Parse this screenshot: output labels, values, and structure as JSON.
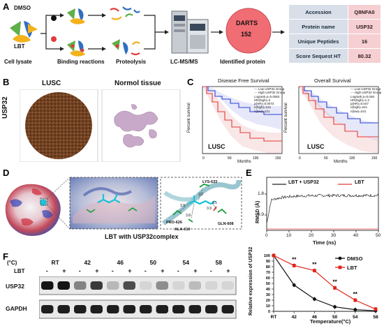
{
  "panel_letters": [
    "A",
    "B",
    "C",
    "D",
    "E",
    "F"
  ],
  "panel_a": {
    "dmso": "DMSO",
    "lbt": "LBT",
    "steps": [
      "Cell lysate",
      "Binding reactions",
      "Proteolysis",
      "LC-MS/MS",
      "Identified protein"
    ],
    "darts_title": "DARTS",
    "darts_count": "152",
    "table": [
      {
        "key": "Accession",
        "value": "Q8NFA0"
      },
      {
        "key": "Protein name",
        "value": "USP32"
      },
      {
        "key": "Unique Peptides",
        "value": "16"
      },
      {
        "key": "Score Sequest HT",
        "value": "80.32"
      }
    ]
  },
  "panel_b": {
    "row_label": "USP32",
    "col1": "LUSC",
    "col2": "Normol tissue"
  },
  "panel_c": {
    "left": {
      "title": "Disease Free Survival",
      "tag": "LUSC",
      "ylabel": "Percent survival",
      "xlabel": "Months",
      "legend": [
        "Low USP32 Group",
        "High USP32 Group",
        "Logrank p=0.0062",
        "HR(high)=2",
        "p(HR)=0.0073",
        "n(high)=121",
        "n(low)=121"
      ]
    },
    "right": {
      "title": "Overall Survival",
      "tag": "LUSC",
      "ylabel": "Percent survival",
      "xlabel": "Months",
      "legend": [
        "Low USP32 Group",
        "High USP32 Group",
        "Logrank p=0.048",
        "HR(high)=1.3",
        "p(HR)=0.047",
        "n(high)=241",
        "n(low)=241"
      ]
    },
    "colors": {
      "low": "#2b3fd8",
      "high": "#e23a3a"
    }
  },
  "panel_d": {
    "caption": "LBT with  USP32complex",
    "residues": [
      "LYS-633",
      "PRO-626",
      "ALA-610",
      "GLN-608"
    ],
    "distances": [
      "3.9",
      "3.8",
      "2.2",
      "2.5",
      "3.9"
    ]
  },
  "panel_e": {
    "legend": [
      "LBT + USP32",
      "LBT"
    ],
    "colors": {
      "complex": "#222222",
      "lbt": "#e23a3a"
    },
    "ylabel": "RMSD (Å)",
    "xlabel": "Time (ns)",
    "yticks": [
      "0.9",
      "1.8"
    ],
    "xticks": [
      "0",
      "10",
      "20",
      "30",
      "40",
      "50"
    ]
  },
  "panel_f": {
    "unit": "(°C)",
    "temps": [
      "RT",
      "42",
      "46",
      "50",
      "54",
      "58"
    ],
    "lbt_label": "LBT",
    "signs": [
      "-",
      "+",
      "-",
      "+",
      "-",
      "+",
      "-",
      "+",
      "-",
      "+",
      "-",
      "+"
    ],
    "bands": [
      "USP32",
      "GAPDH"
    ]
  },
  "chart_data": {
    "type": "line",
    "categories": [
      "RT",
      "42",
      "46",
      "50",
      "54",
      "58"
    ],
    "series": [
      {
        "name": "DMSO",
        "values": [
          100,
          47,
          22,
          8,
          3,
          1
        ],
        "color": "#111111"
      },
      {
        "name": "LBT",
        "values": [
          100,
          82,
          73,
          42,
          20,
          4
        ],
        "color": "#e2231a"
      }
    ],
    "annotations": [
      "**",
      "**",
      "**",
      "**"
    ],
    "xlabel": "Temperature(°C)",
    "ylabel": "Relative expression of USP32",
    "ylim": [
      0,
      100
    ],
    "yticks": [
      "0",
      "10",
      "20",
      "30",
      "40",
      "50",
      "60",
      "70",
      "80",
      "90",
      "100"
    ]
  }
}
